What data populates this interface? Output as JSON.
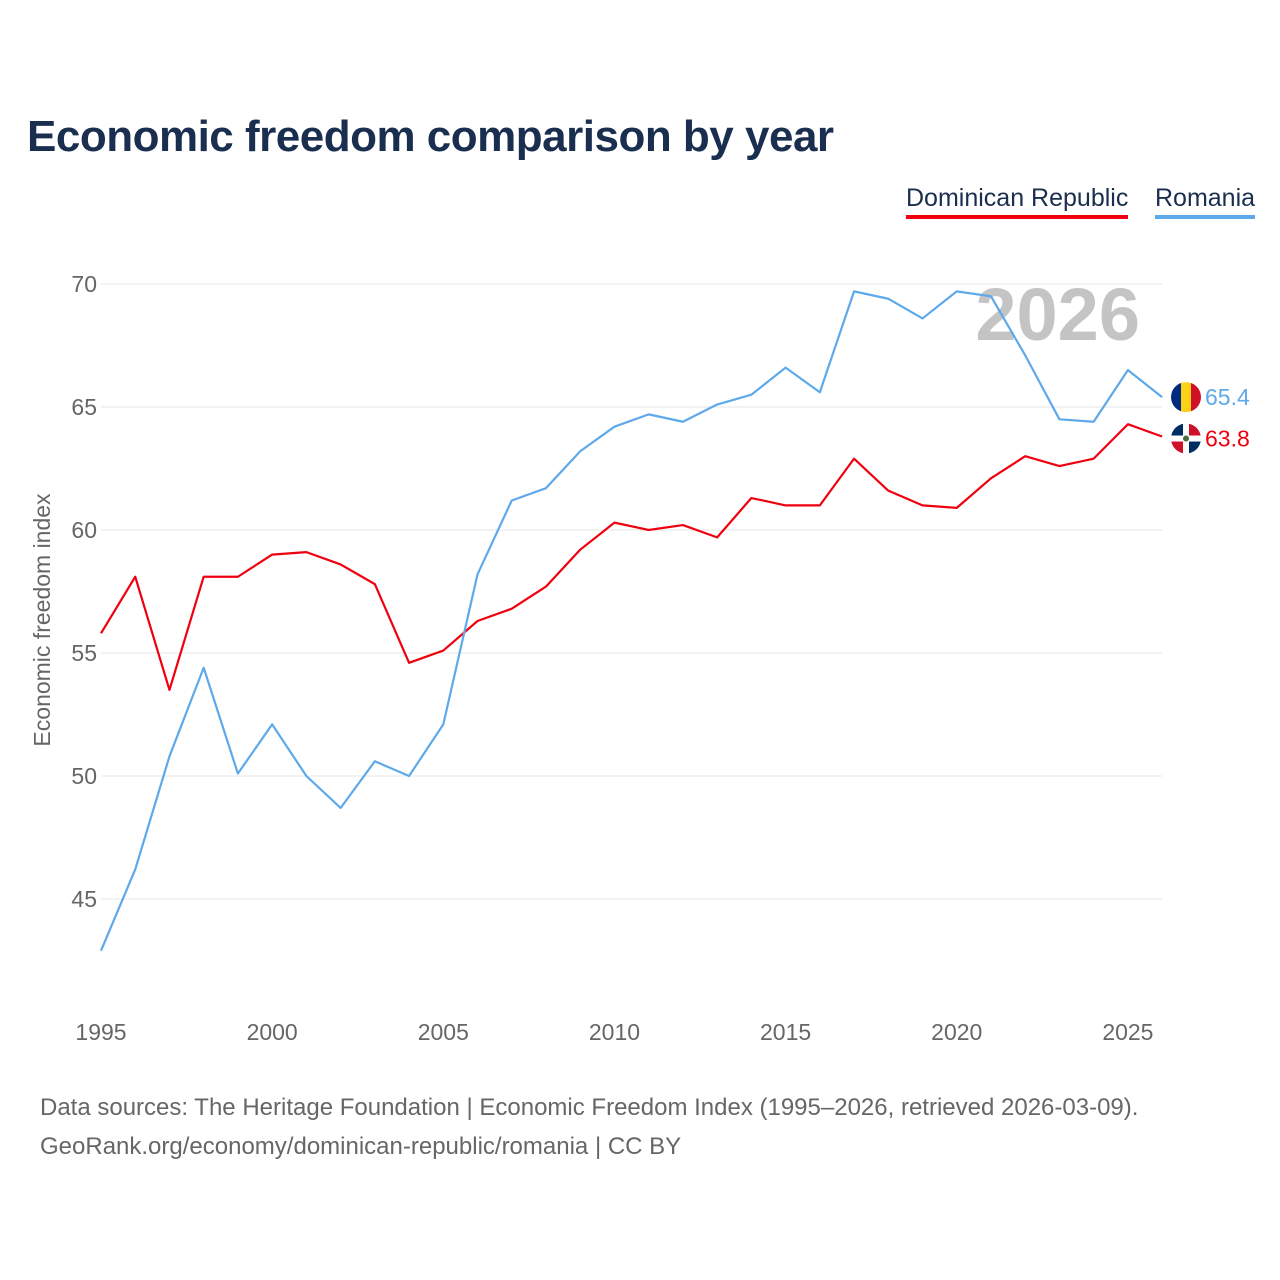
{
  "title": "Economic freedom comparison by year",
  "footer": {
    "line1": "Data sources: The Heritage Foundation | Economic Freedom Index (1995–2026, retrieved 2026-03-09).",
    "line2": "GeoRank.org/economy/dominican-republic/romania | CC BY"
  },
  "chart_data": {
    "type": "line",
    "title": "Economic freedom comparison by year",
    "xlabel": "",
    "ylabel": "Economic freedom index",
    "watermark_year": "2026",
    "x": [
      1995,
      1996,
      1997,
      1998,
      1999,
      2000,
      2001,
      2002,
      2003,
      2004,
      2005,
      2006,
      2007,
      2008,
      2009,
      2010,
      2011,
      2012,
      2013,
      2014,
      2015,
      2016,
      2017,
      2018,
      2019,
      2020,
      2021,
      2022,
      2023,
      2024,
      2025,
      2026
    ],
    "xticks": [
      "1995",
      "2000",
      "2005",
      "2010",
      "2015",
      "2020",
      "2025"
    ],
    "yticks": [
      "45",
      "50",
      "55",
      "60",
      "65",
      "70"
    ],
    "ylim": [
      42,
      71
    ],
    "grid": true,
    "legend_position": "top-right",
    "series": [
      {
        "name": "Dominican Republic",
        "color": "#f0000f",
        "end_label": "63.8",
        "values": [
          55.8,
          58.1,
          53.5,
          58.1,
          58.1,
          59.0,
          59.1,
          58.6,
          57.8,
          54.6,
          55.1,
          56.3,
          56.8,
          57.7,
          59.2,
          60.3,
          60.0,
          60.2,
          59.7,
          61.3,
          61.0,
          61.0,
          62.9,
          61.6,
          61.0,
          60.9,
          62.1,
          63.0,
          62.6,
          62.9,
          64.3,
          63.8
        ]
      },
      {
        "name": "Romania",
        "color": "#5ea9ea",
        "end_label": "65.4",
        "values": [
          42.9,
          46.2,
          50.8,
          54.4,
          50.1,
          52.1,
          50.0,
          48.7,
          50.6,
          50.0,
          52.1,
          58.2,
          61.2,
          61.7,
          63.2,
          64.2,
          64.7,
          64.4,
          65.1,
          65.5,
          66.6,
          65.6,
          69.7,
          69.4,
          68.6,
          69.7,
          69.5,
          67.1,
          64.5,
          64.4,
          66.5,
          65.4
        ]
      }
    ]
  }
}
